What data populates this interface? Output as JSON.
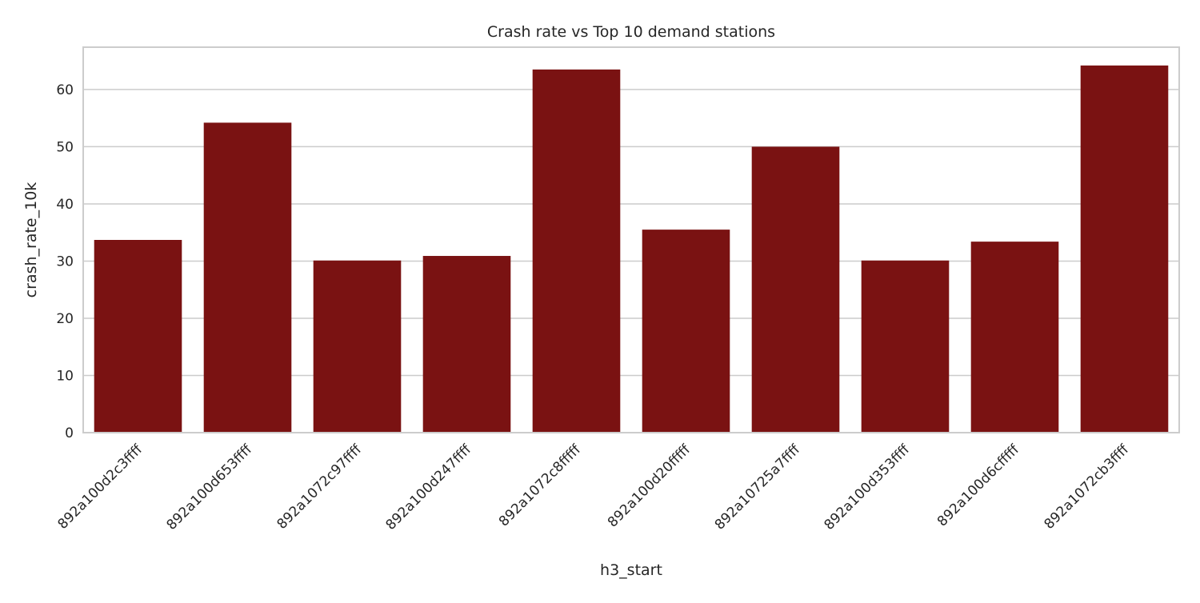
{
  "chart_data": {
    "type": "bar",
    "title": "Crash rate vs Top 10 demand stations",
    "xlabel": "h3_start",
    "ylabel": "crash_rate_10k",
    "categories": [
      "892a100d2c3ffff",
      "892a100d653ffff",
      "892a1072c97ffff",
      "892a100d247ffff",
      "892a1072c8fffff",
      "892a100d20fffff",
      "892a10725a7ffff",
      "892a100d353ffff",
      "892a100d6cfffff",
      "892a1072cb3ffff"
    ],
    "values": [
      33.7,
      54.2,
      30.1,
      30.9,
      63.5,
      35.5,
      50.0,
      30.1,
      33.4,
      64.2
    ],
    "ylim": [
      0,
      67.4
    ],
    "yticks": [
      0,
      10,
      20,
      30,
      40,
      50,
      60
    ],
    "grid": true,
    "legend": "none",
    "bar_color": "#7a1212",
    "grid_color": "#cccccc",
    "spine_color": "#cccccc"
  }
}
